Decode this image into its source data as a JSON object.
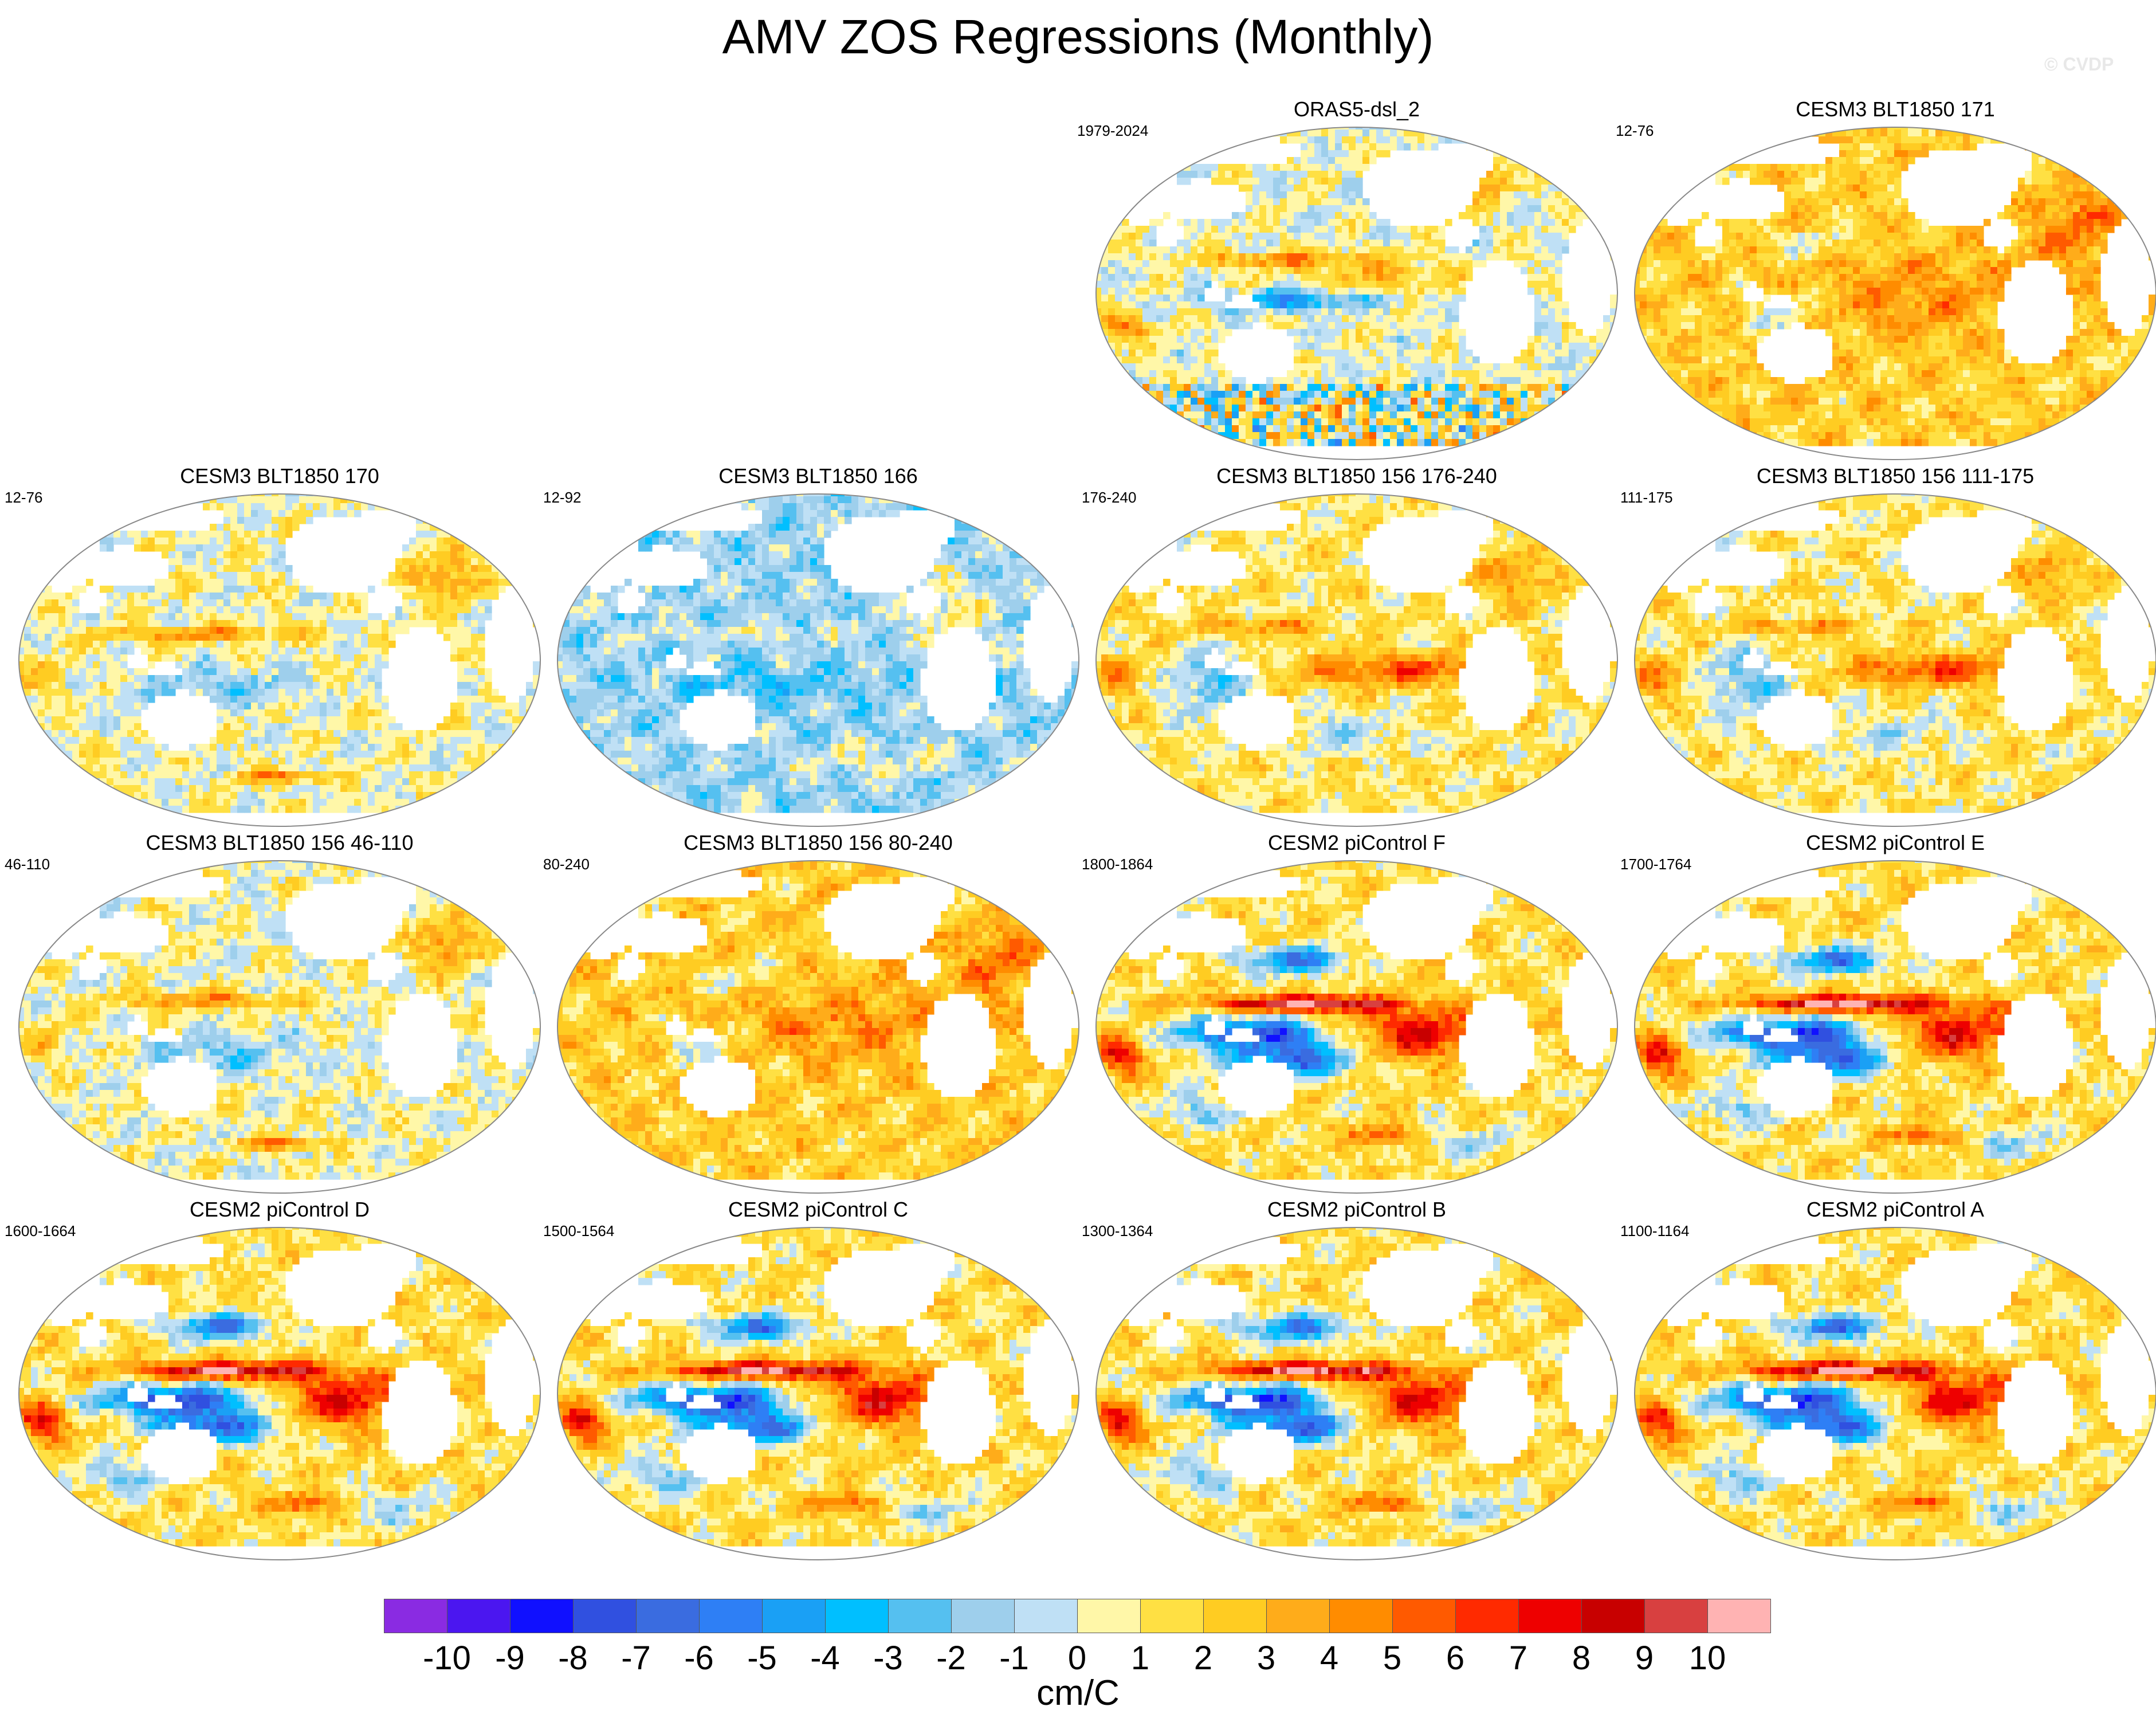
{
  "title": "AMV ZOS Regressions (Monthly)",
  "watermark": "© CVDP",
  "colorbar": {
    "units": "cm/C",
    "labels": [
      "-10",
      "-9",
      "-8",
      "-7",
      "-6",
      "-5",
      "-4",
      "-3",
      "-2",
      "-1",
      "0",
      "1",
      "2",
      "3",
      "4",
      "5",
      "6",
      "7",
      "8",
      "9",
      "10"
    ],
    "colors": [
      "#8a2be2",
      "#4b16f0",
      "#1010ff",
      "#3050e0",
      "#3a6ce0",
      "#2e7ff5",
      "#1aa0f5",
      "#00bfff",
      "#55c0f0",
      "#9ecfec",
      "#bfe0f5",
      "#fff7a8",
      "#ffe043",
      "#ffcc22",
      "#ffac1a",
      "#ff8c00",
      "#ff5a00",
      "#ff2a00",
      "#ee0000",
      "#c80000",
      "#d84040",
      "#ffb3b3"
    ]
  },
  "chart_data": {
    "type": "heatmap",
    "title": "AMV ZOS Regressions (Monthly)",
    "colorbar_units": "cm/C",
    "colorbar_range": [
      -10,
      10
    ],
    "colorbar_ticks": [
      -10,
      -9,
      -8,
      -7,
      -6,
      -5,
      -4,
      -3,
      -2,
      -1,
      0,
      1,
      2,
      3,
      4,
      5,
      6,
      7,
      8,
      9,
      10
    ],
    "panels": [
      {
        "title": "ORAS5-dsl_2",
        "years": "1979-2024",
        "pattern": "obs"
      },
      {
        "title": "CESM3 BLT1850 171",
        "years": "12-76",
        "pattern": "warm_broad"
      },
      {
        "title": "CESM3 BLT1850 170",
        "years": "12-76",
        "pattern": "mixed"
      },
      {
        "title": "CESM3 BLT1850 166",
        "years": "12-92",
        "pattern": "cool_mixed"
      },
      {
        "title": "CESM3 BLT1850 156 176-240",
        "years": "176-240",
        "pattern": "enso_moderate"
      },
      {
        "title": "CESM3 BLT1850 156 111-175",
        "years": "111-175",
        "pattern": "enso_moderate"
      },
      {
        "title": "CESM3 BLT1850 156 46-110",
        "years": "46-110",
        "pattern": "mixed"
      },
      {
        "title": "CESM3 BLT1850 156 80-240",
        "years": "80-240",
        "pattern": "warm_broad"
      },
      {
        "title": "CESM2 piControl F",
        "years": "1800-1864",
        "pattern": "enso_strong"
      },
      {
        "title": "CESM2 piControl E",
        "years": "1700-1764",
        "pattern": "enso_strong"
      },
      {
        "title": "CESM2 piControl D",
        "years": "1600-1664",
        "pattern": "enso_strong"
      },
      {
        "title": "CESM2 piControl C",
        "years": "1500-1564",
        "pattern": "enso_strong"
      },
      {
        "title": "CESM2 piControl B",
        "years": "1300-1364",
        "pattern": "enso_strong"
      },
      {
        "title": "CESM2 piControl A",
        "years": "1100-1164",
        "pattern": "enso_strong"
      }
    ]
  }
}
